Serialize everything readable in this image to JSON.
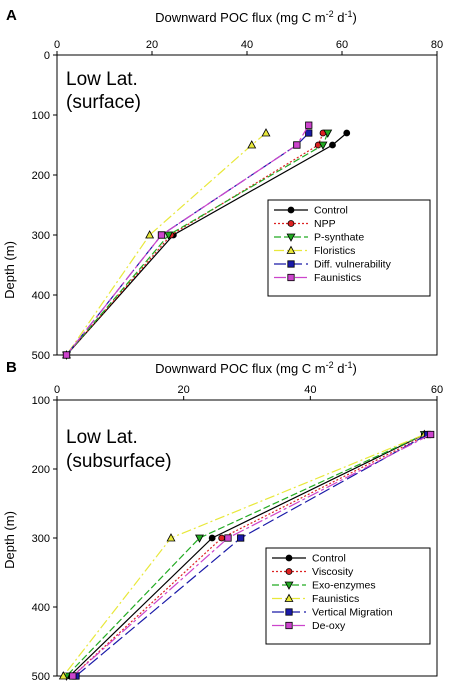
{
  "chart_data": [
    {
      "type": "line",
      "panel_label": "A",
      "xlabel": "Downward POC flux (mg C m-2 d-1)",
      "xlabel_parts": {
        "main": "Downward POC flux (mg C m",
        "exp1": "-2",
        "mid": " d",
        "exp2": "-1",
        "end": ")"
      },
      "ylabel": "Depth (m)",
      "xlim": [
        0,
        80
      ],
      "ylim": [
        0,
        500
      ],
      "xticks": [
        0,
        20,
        40,
        60,
        80
      ],
      "yticks": [
        0,
        100,
        200,
        300,
        400,
        500
      ],
      "y_inverted": true,
      "x_axis_position": "top",
      "annotation": [
        "Low Lat.",
        "(surface)"
      ],
      "legend_position": "lower-right",
      "series": [
        {
          "name": "Control",
          "color": "#000000",
          "dash": "",
          "marker": "circle",
          "x": [
            61,
            58,
            24.5,
            2
          ],
          "y": [
            130,
            150,
            300,
            500
          ]
        },
        {
          "name": "NPP",
          "color": "#dd2222",
          "dash": "2,2",
          "marker": "circle",
          "x": [
            56,
            55,
            24,
            2
          ],
          "y": [
            130,
            150,
            300,
            500
          ]
        },
        {
          "name": "P-synthate",
          "color": "#22aa22",
          "dash": "7,3",
          "marker": "triangle-down",
          "x": [
            57,
            56,
            23.5,
            2
          ],
          "y": [
            130,
            150,
            300,
            500
          ]
        },
        {
          "name": "Floristics",
          "color": "#e8e83a",
          "dash": "10,3,2,3",
          "marker": "triangle-up",
          "x": [
            44,
            41,
            19.5,
            2
          ],
          "y": [
            130,
            150,
            300,
            500
          ]
        },
        {
          "name": "Diff. vulnerability",
          "color": "#1a1aa8",
          "dash": "12,4",
          "marker": "square",
          "x": [
            53,
            50.5,
            22,
            2
          ],
          "y": [
            130,
            150,
            300,
            500
          ]
        },
        {
          "name": "Faunistics",
          "color": "#cc44cc",
          "dash": "12,3,3,3",
          "marker": "square",
          "x": [
            53,
            50.5,
            22,
            2
          ],
          "y": [
            117,
            150,
            300,
            500
          ]
        }
      ]
    },
    {
      "type": "line",
      "panel_label": "B",
      "xlabel": "Downward POC flux (mg C m-2 d-1)",
      "xlabel_parts": {
        "main": "Downward POC flux (mg C m",
        "exp1": "-2",
        "mid": " d",
        "exp2": "-1",
        "end": ")"
      },
      "ylabel": "Depth (m)",
      "xlim": [
        0,
        60
      ],
      "ylim": [
        100,
        500
      ],
      "xticks": [
        0,
        20,
        40,
        60
      ],
      "yticks": [
        100,
        200,
        300,
        400,
        500
      ],
      "y_inverted": true,
      "x_axis_position": "top",
      "annotation": [
        "Low Lat.",
        "(subsurface)"
      ],
      "legend_position": "lower-right",
      "series": [
        {
          "name": "Control",
          "color": "#000000",
          "dash": "",
          "marker": "circle",
          "x": [
            58,
            24.5,
            2
          ],
          "y": [
            150,
            300,
            500
          ]
        },
        {
          "name": "Viscosity",
          "color": "#dd2222",
          "dash": "2,2",
          "marker": "circle",
          "x": [
            58.5,
            26,
            2.5
          ],
          "y": [
            150,
            300,
            500
          ]
        },
        {
          "name": "Exo-enzymes",
          "color": "#22aa22",
          "dash": "7,3",
          "marker": "triangle-down",
          "x": [
            58,
            22.5,
            1.5
          ],
          "y": [
            150,
            300,
            500
          ]
        },
        {
          "name": "Faunistics",
          "color": "#e8e83a",
          "dash": "10,3,2,3",
          "marker": "triangle-up",
          "x": [
            58,
            18,
            1
          ],
          "y": [
            150,
            300,
            500
          ]
        },
        {
          "name": "Vertical Migration",
          "color": "#1a1aa8",
          "dash": "12,4",
          "marker": "square",
          "x": [
            58.5,
            29,
            3
          ],
          "y": [
            150,
            300,
            500
          ]
        },
        {
          "name": "De-oxy",
          "color": "#cc44cc",
          "dash": "12,3,3,3",
          "marker": "square",
          "x": [
            59,
            27,
            2.5
          ],
          "y": [
            150,
            300,
            500
          ]
        }
      ]
    }
  ]
}
